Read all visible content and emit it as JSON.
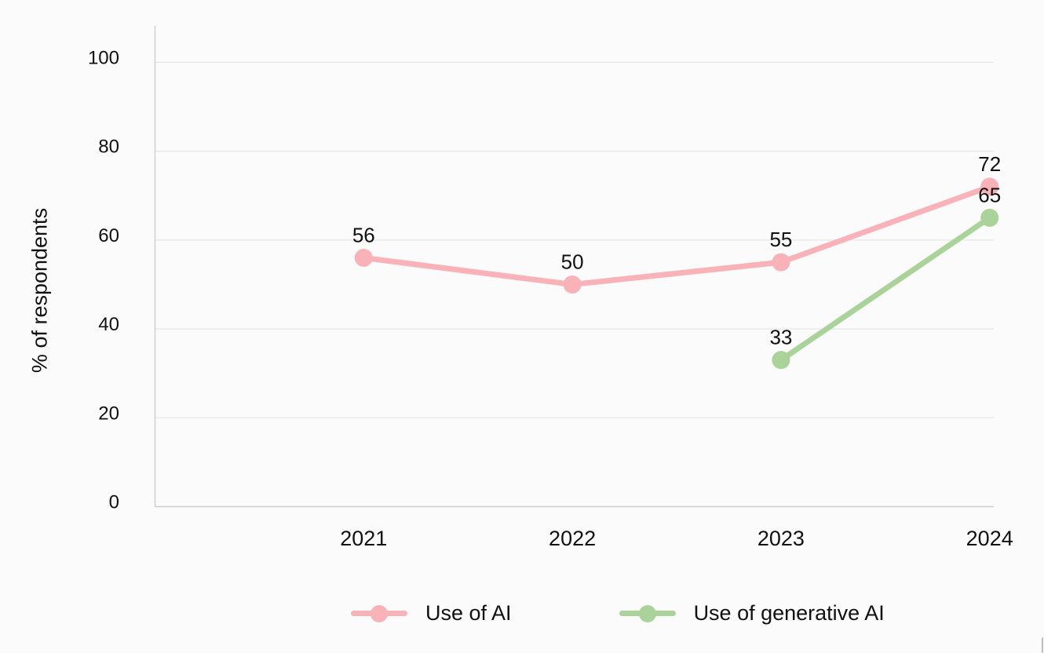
{
  "chart_data": {
    "type": "line",
    "title": "",
    "xlabel": "",
    "ylabel": "% of respondents",
    "categories": [
      "2021",
      "2022",
      "2023",
      "2024"
    ],
    "series": [
      {
        "name": "Use of AI",
        "color": "#f9b2b8",
        "values": [
          56,
          50,
          55,
          72
        ]
      },
      {
        "name": "Use of generative AI",
        "color": "#aad399",
        "values": [
          null,
          null,
          33,
          65
        ]
      }
    ],
    "ylim": [
      0,
      100
    ],
    "yticks": [
      0,
      20,
      40,
      60,
      80,
      100
    ],
    "grid": true,
    "point_labels_visible": true,
    "legend_position": "bottom"
  },
  "colors": {
    "background": "#fbfbfb",
    "gridline": "#e8e8e8",
    "axis": "#cfcfcf",
    "text": "#111111"
  }
}
